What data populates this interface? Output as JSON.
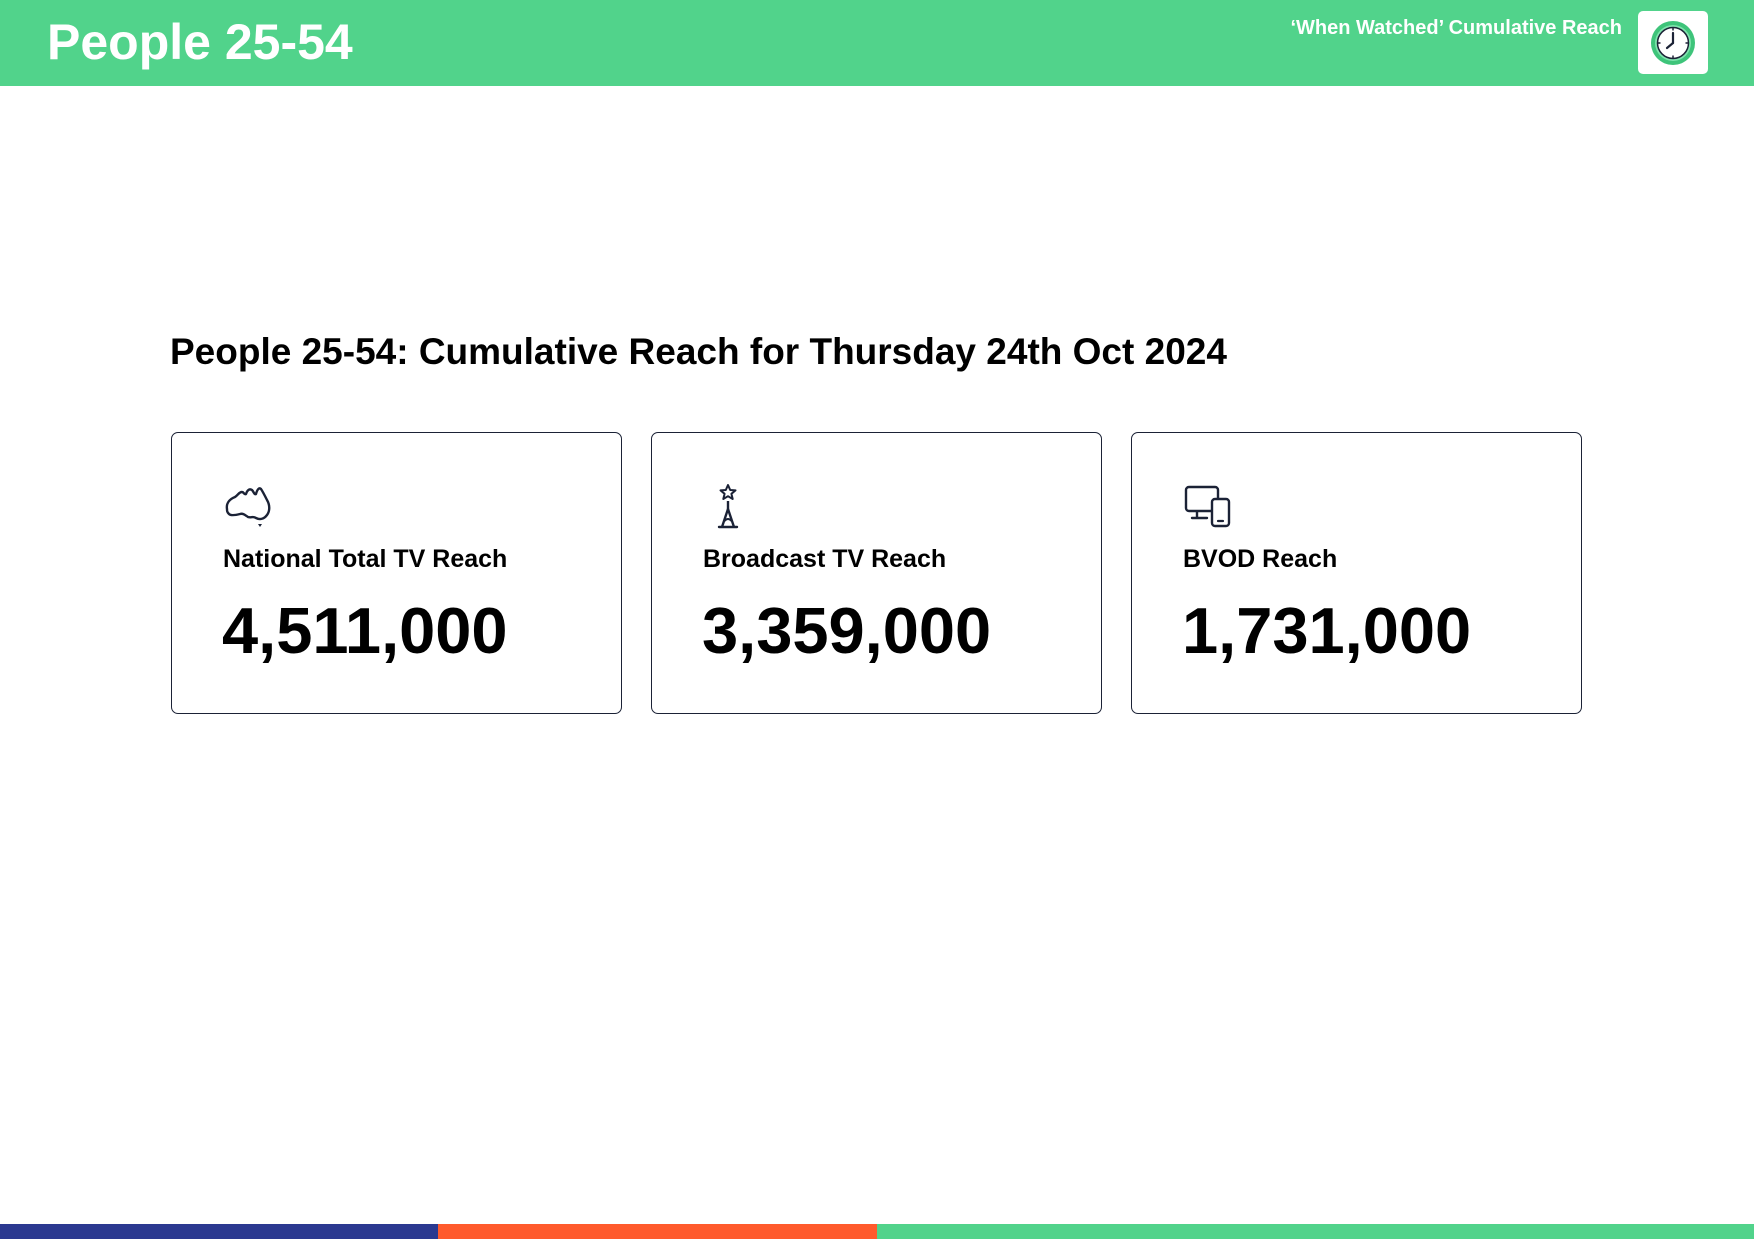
{
  "header": {
    "title": "People 25-54",
    "subtitle": "‘When Watched’ Cumulative Reach",
    "logo_icon": "clock-icon"
  },
  "main": {
    "title": "People 25-54: Cumulative Reach for Thursday 24th Oct 2024",
    "cards": [
      {
        "icon": "australia-map-icon",
        "label": "National Total TV Reach",
        "value": "4,511,000"
      },
      {
        "icon": "broadcast-tower-icon",
        "label": "Broadcast TV Reach",
        "value": "3,359,000"
      },
      {
        "icon": "devices-icon",
        "label": "BVOD Reach",
        "value": "1,731,000"
      }
    ]
  },
  "colors": {
    "header_green": "#51d38b",
    "footer_navy": "#2b3990",
    "footer_orange": "#ff5a2c",
    "footer_green": "#51d38b",
    "icon_stroke": "#1b2236"
  }
}
